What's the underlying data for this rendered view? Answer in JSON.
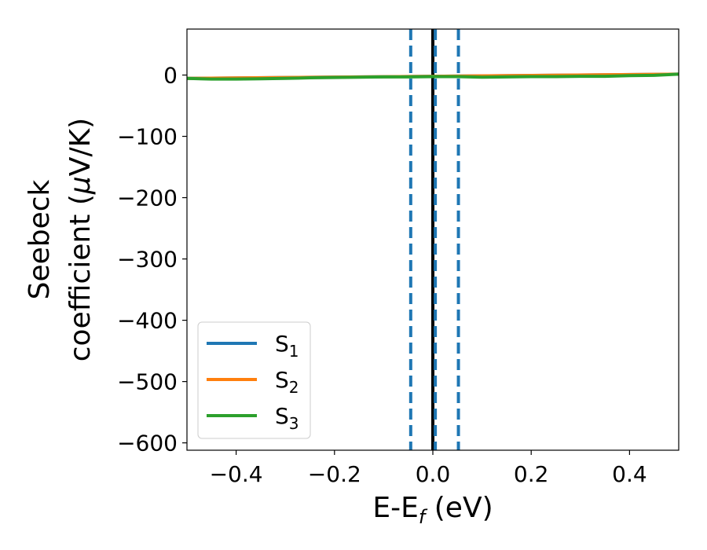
{
  "chart_data": {
    "type": "line",
    "xlabel": {
      "main": "E-E",
      "sub": "f",
      "unit": " (eV)"
    },
    "ylabel": {
      "line1": "Seebeck",
      "line2_pre": "coefficient  (",
      "line2_mu": "μ",
      "line2_post": "V/K)"
    },
    "xlim": [
      -0.5,
      0.5
    ],
    "ylim": [
      -612,
      75
    ],
    "xticks": [
      -0.4,
      -0.2,
      0.0,
      0.2,
      0.4
    ],
    "xtick_labels": [
      "−0.4",
      "−0.2",
      "0.0",
      "0.2",
      "0.4"
    ],
    "yticks": [
      0,
      -100,
      -200,
      -300,
      -400,
      -500,
      -600
    ],
    "ytick_labels": [
      "0",
      "−100",
      "−200",
      "−300",
      "−400",
      "−500",
      "−600"
    ],
    "series": [
      {
        "name_main": "S",
        "name_sub": "1",
        "color": "#1f77b4",
        "x": [
          -0.5,
          0.5
        ],
        "y": [
          -5.5,
          1.5
        ]
      },
      {
        "name_main": "S",
        "name_sub": "2",
        "color": "#ff7f0e",
        "x": [
          -0.5,
          0.5
        ],
        "y": [
          -5.5,
          1.5
        ]
      },
      {
        "name_main": "S",
        "name_sub": "3",
        "color": "#2ca02c",
        "x": [
          -0.5,
          -0.45,
          -0.4,
          -0.35,
          -0.3,
          -0.25,
          -0.2,
          -0.15,
          -0.1,
          -0.05,
          0.0,
          0.05,
          0.1,
          0.15,
          0.2,
          0.25,
          0.3,
          0.35,
          0.4,
          0.45,
          0.5
        ],
        "y": [
          -5.5,
          -6.5,
          -6.5,
          -6,
          -5.5,
          -4.5,
          -4,
          -3.5,
          -3,
          -3,
          -2.5,
          -2.5,
          -3.5,
          -3,
          -2.5,
          -2.5,
          -2,
          -2,
          -1,
          -0.5,
          1.5
        ]
      }
    ],
    "vlines": [
      {
        "x": 0.0,
        "color": "#000000",
        "style": "solid"
      },
      {
        "x": -0.045,
        "color": "#1f77b4",
        "style": "dashed"
      },
      {
        "x": 0.005,
        "color": "#1f77b4",
        "style": "dashed"
      },
      {
        "x": 0.052,
        "color": "#1f77b4",
        "style": "dashed"
      }
    ],
    "legend_position": "lower-left",
    "grid": false
  }
}
